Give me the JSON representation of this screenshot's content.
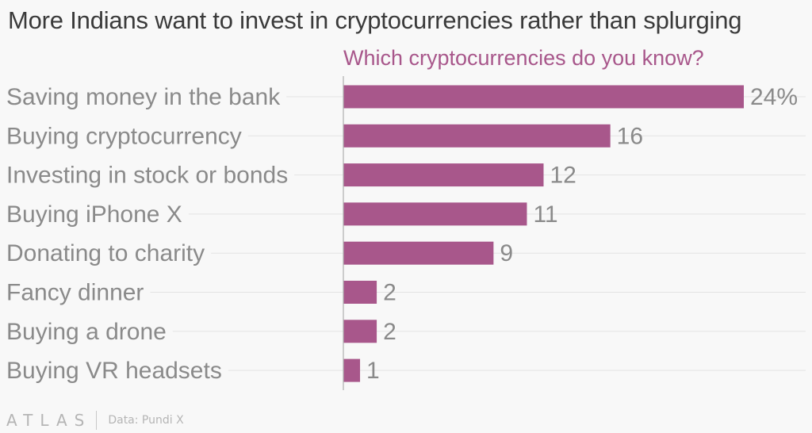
{
  "title": "More Indians want to invest in cryptocurrencies rather than splurging",
  "subtitle": "Which cryptocurrencies do you know?",
  "colors": {
    "bar": "#a8578b",
    "subtitle": "#a8578b",
    "text": "#3a3a3a",
    "muted": "#8a8a8a",
    "grid": "#e3e3e3",
    "background": "#f8f8f8"
  },
  "chart_data": {
    "type": "bar",
    "orientation": "horizontal",
    "categories": [
      "Saving money in the bank",
      "Buying cryptocurrency",
      "Investing in stock or bonds",
      "Buying iPhone X",
      "Donating to charity",
      "Fancy dinner",
      "Buying a drone",
      "Buying VR headsets"
    ],
    "values": [
      24,
      16,
      12,
      11,
      9,
      2,
      2,
      1
    ],
    "value_labels": [
      "24%",
      "16",
      "12",
      "11",
      "9",
      "2",
      "2",
      "1"
    ],
    "unit": "%",
    "xlim": [
      0,
      24
    ],
    "grid": false,
    "legend": "none"
  },
  "footer": {
    "logo": "ATLAS",
    "source": "Data: Pundi X"
  }
}
